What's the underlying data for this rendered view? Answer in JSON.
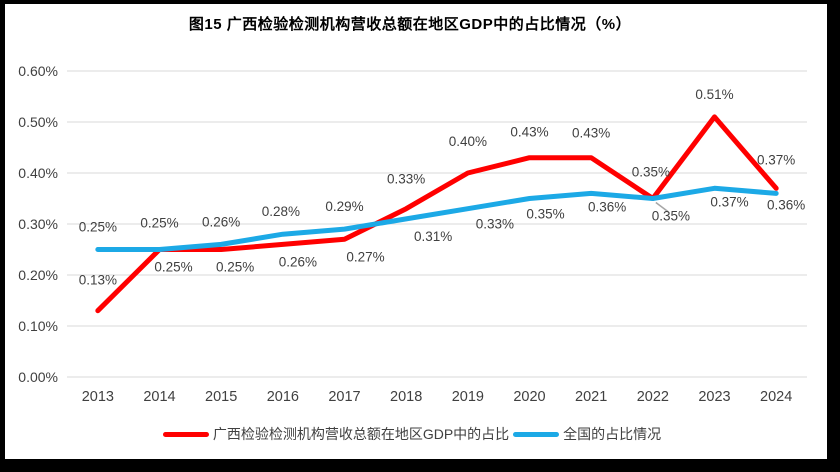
{
  "chart_data": {
    "type": "line",
    "title": "图15 广西检验检测机构营收总额在地区GDP中的占比情况（%）",
    "categories": [
      "2013",
      "2014",
      "2015",
      "2016",
      "2017",
      "2018",
      "2019",
      "2020",
      "2021",
      "2022",
      "2023",
      "2024"
    ],
    "y_ticks": [
      "0.00%",
      "0.10%",
      "0.20%",
      "0.30%",
      "0.40%",
      "0.50%",
      "0.60%"
    ],
    "ylim": [
      0,
      0.6
    ],
    "grid": "horizontal",
    "legend_position": "bottom",
    "grid_color": "#D9D9D9",
    "axis_color": "#404040",
    "label_color": "#404040",
    "leader_color": "#A6A6A6",
    "series": [
      {
        "name": "广西检验检测机构营收总额在地区GDP中的占比",
        "color": "#FF0000",
        "values": [
          0.13,
          0.25,
          0.25,
          0.26,
          0.27,
          0.33,
          0.4,
          0.43,
          0.43,
          0.35,
          0.51,
          0.37
        ],
        "labels": [
          "0.13%",
          "0.25%",
          "0.25%",
          "0.26%",
          "0.27%",
          "0.33%",
          "0.40%",
          "0.43%",
          "0.43%",
          "0.35%",
          "0.51%",
          "0.37%"
        ],
        "label_positions": [
          "above",
          "below",
          "below",
          "below",
          "below",
          "above",
          "above",
          "above",
          "above",
          "above",
          "above",
          "above"
        ],
        "label_dx": [
          0,
          14,
          14,
          15,
          21,
          0,
          0,
          0,
          0,
          -2,
          0,
          0
        ],
        "label_dy": [
          -8,
          0,
          0,
          0,
          0,
          -7,
          -9,
          -3,
          -2,
          -4,
          0,
          -6
        ]
      },
      {
        "name": "全国的占比情况",
        "color": "#1CA9E6",
        "values": [
          0.25,
          0.25,
          0.26,
          0.28,
          0.29,
          0.31,
          0.33,
          0.35,
          0.36,
          0.35,
          0.37,
          0.36
        ],
        "labels": [
          "0.25%",
          "0.25%",
          "0.26%",
          "0.28%",
          "0.29%",
          "0.31%",
          "0.33%",
          "0.35%",
          "0.36%",
          "0.35%",
          "0.37%",
          "0.36%"
        ],
        "label_positions": [
          "above",
          "above",
          "above",
          "above",
          "above",
          "below",
          "below",
          "below",
          "below",
          "below-leader",
          "below",
          "below"
        ],
        "label_dx": [
          0,
          0,
          0,
          -2,
          0,
          27,
          27,
          16,
          16,
          18,
          15,
          10
        ],
        "label_dy": [
          0,
          -4,
          0,
          0,
          0,
          0,
          -2,
          -2,
          -4,
          0,
          -4,
          -6
        ]
      }
    ]
  }
}
